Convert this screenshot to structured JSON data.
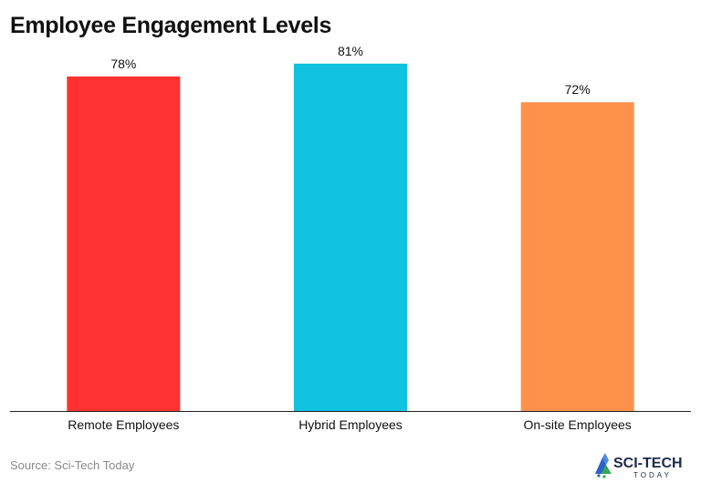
{
  "header": {
    "title": "Employee Engagement Levels"
  },
  "chart_data": {
    "type": "bar",
    "categories": [
      "Remote Employees",
      "Hybrid Employees",
      "On-site Employees"
    ],
    "values": [
      78,
      81,
      72
    ],
    "data_labels": [
      "78%",
      "81%",
      "72%"
    ],
    "colors": [
      "#ff3131",
      "#10c2e0",
      "#ff914d"
    ],
    "title": "Employee Engagement Levels",
    "xlabel": "",
    "ylabel": "",
    "ylim": [
      0,
      85
    ],
    "grid": false,
    "legend": "none"
  },
  "footer": {
    "source": "Source: Sci-Tech Today",
    "logo_text": "SCI-TECH",
    "logo_subtext": "TODAY"
  }
}
